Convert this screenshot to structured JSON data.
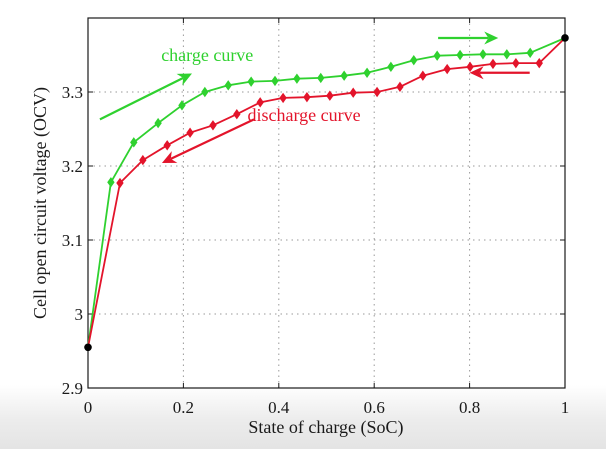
{
  "chart_data": {
    "type": "line",
    "title": "",
    "xlabel": "State of charge (SoC)",
    "ylabel": "Cell open circuit voltage (OCV)",
    "xlim": [
      0,
      1
    ],
    "ylim": [
      2.9,
      3.4
    ],
    "grid": true,
    "xticks": [
      0,
      0.2,
      0.4,
      0.6,
      0.8,
      1
    ],
    "xtick_labels": [
      "0",
      "0.2",
      "0.4",
      "0.6",
      "0.8",
      "1"
    ],
    "yticks": [
      2.9,
      3.0,
      3.1,
      3.2,
      3.3
    ],
    "ytick_labels": [
      "2.9",
      "3",
      "3.1",
      "3.2",
      "3.3"
    ],
    "series": [
      {
        "name": "charge curve",
        "color": "#2fd12f",
        "marker": "diamond",
        "x": [
          0.048,
          0.096,
          0.147,
          0.197,
          0.245,
          0.294,
          0.342,
          0.392,
          0.438,
          0.488,
          0.537,
          0.585,
          0.635,
          0.683,
          0.732,
          0.78,
          0.828,
          0.878,
          0.927
        ],
        "y": [
          3.178,
          3.232,
          3.258,
          3.282,
          3.3,
          3.309,
          3.314,
          3.315,
          3.318,
          3.319,
          3.322,
          3.326,
          3.334,
          3.343,
          3.349,
          3.35,
          3.351,
          3.351,
          3.353
        ]
      },
      {
        "name": "discharge curve",
        "color": "#e3142b",
        "marker": "diamond",
        "x": [
          0.067,
          0.115,
          0.166,
          0.214,
          0.262,
          0.312,
          0.361,
          0.409,
          0.459,
          0.507,
          0.556,
          0.606,
          0.654,
          0.702,
          0.753,
          0.801,
          0.849,
          0.897,
          0.946
        ],
        "y": [
          3.177,
          3.208,
          3.228,
          3.245,
          3.255,
          3.27,
          3.286,
          3.292,
          3.293,
          3.295,
          3.299,
          3.3,
          3.307,
          3.322,
          3.331,
          3.334,
          3.338,
          3.339,
          3.339
        ]
      }
    ],
    "endpoints": {
      "color": "#000000",
      "points": [
        {
          "x": 0,
          "y": 2.955
        },
        {
          "x": 1,
          "y": 3.373
        }
      ]
    },
    "annotations": [
      {
        "text": "charge curve",
        "color": "#2fd12f",
        "x": 0.25,
        "y": 3.342
      },
      {
        "text": "discharge curve",
        "color": "#e3142b",
        "x": 0.453,
        "y": 3.261
      }
    ],
    "arrows": [
      {
        "series": "charge curve",
        "color": "#2fd12f",
        "from": [
          0.025,
          3.263
        ],
        "to": [
          0.218,
          3.325
        ]
      },
      {
        "series": "charge curve",
        "color": "#2fd12f",
        "from": [
          0.734,
          3.373
        ],
        "to": [
          0.86,
          3.373
        ]
      },
      {
        "series": "discharge curve",
        "color": "#e3142b",
        "from": [
          0.348,
          3.263
        ],
        "to": [
          0.155,
          3.204
        ]
      },
      {
        "series": "discharge curve",
        "color": "#e3142b",
        "from": [
          0.926,
          3.326
        ],
        "to": [
          0.8,
          3.326
        ]
      }
    ],
    "grid_color": "#9a9a9a",
    "axis_color": "#1a1a1a"
  }
}
